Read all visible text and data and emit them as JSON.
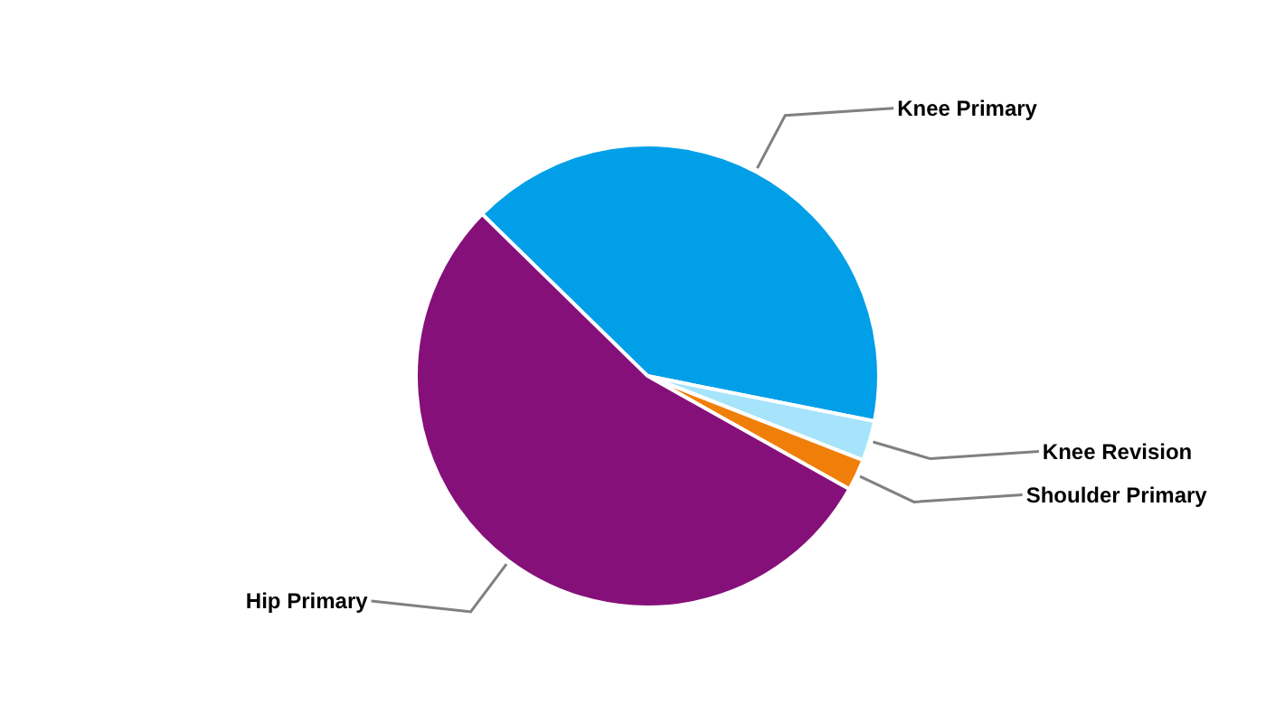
{
  "chart_data": {
    "type": "pie",
    "categories": [
      "Knee Primary",
      "Knee Revision",
      "Shoulder Primary",
      "Hip Primary"
    ],
    "values": [
      40.8,
      2.8,
      2.2,
      54.2
    ],
    "colors": [
      "#009fe8",
      "#a6e4fb",
      "#f07f09",
      "#86107a"
    ]
  }
}
